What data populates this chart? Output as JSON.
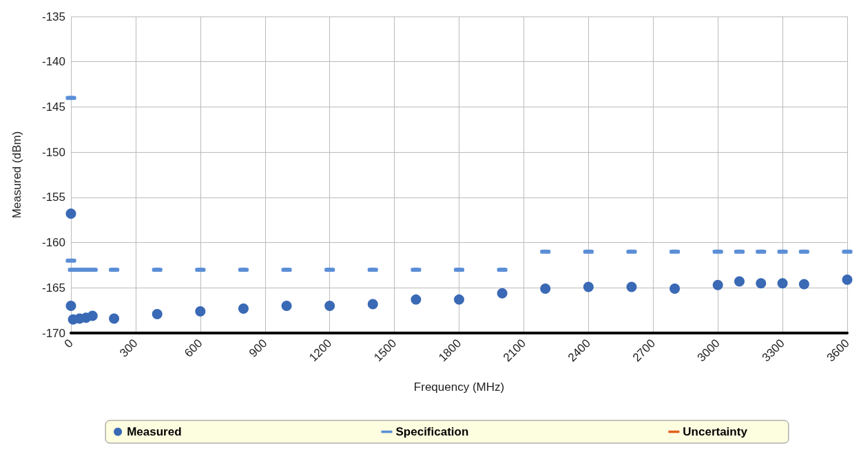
{
  "chart_data": {
    "type": "scatter",
    "xlabel": "Frequency (MHz)",
    "ylabel": "Measured (dBm)",
    "xlim": [
      0,
      3600
    ],
    "xticks": [
      0,
      300,
      600,
      900,
      1200,
      1500,
      1800,
      2100,
      2400,
      2700,
      3000,
      3300,
      3600
    ],
    "ylim": [
      -170,
      -135
    ],
    "yticks": [
      -170,
      -165,
      -160,
      -155,
      -150,
      -145,
      -140,
      -135
    ],
    "grid": true,
    "legend": "bottom",
    "series": [
      {
        "name": "Measured",
        "color": "#3a69b5",
        "marker": "circle",
        "x": [
          0,
          0,
          10,
          40,
          70,
          100,
          200,
          400,
          600,
          800,
          1000,
          1200,
          1400,
          1600,
          1800,
          2000,
          2200,
          2400,
          2600,
          2800,
          3000,
          3100,
          3200,
          3300,
          3400,
          3600
        ],
        "values": [
          -156.8,
          -167.0,
          -168.5,
          -168.4,
          -168.3,
          -168.1,
          -168.4,
          -167.9,
          -167.6,
          -167.3,
          -167.0,
          -167.0,
          -166.8,
          -166.3,
          -166.3,
          -165.6,
          -165.1,
          -164.9,
          -164.9,
          -165.1,
          -164.7,
          -164.3,
          -164.5,
          -164.5,
          -164.6,
          -164.1
        ]
      },
      {
        "name": "Specification",
        "color": "#5b8ed6",
        "marker": "square",
        "x": [
          0,
          0,
          10,
          40,
          70,
          100,
          200,
          400,
          600,
          800,
          1000,
          1200,
          1400,
          1600,
          1800,
          2000,
          2200,
          2400,
          2600,
          2800,
          3000,
          3100,
          3200,
          3300,
          3400,
          3600
        ],
        "values": [
          -144,
          -162,
          -163,
          -163,
          -163,
          -163,
          -163,
          -163,
          -163,
          -163,
          -163,
          -163,
          -163,
          -163,
          -163,
          -163,
          -161,
          -161,
          -161,
          -161,
          -161,
          -161,
          -161,
          -161,
          -161,
          -161
        ]
      },
      {
        "name": "Uncertainty",
        "color": "#e2601e",
        "marker": "square"
      }
    ]
  }
}
